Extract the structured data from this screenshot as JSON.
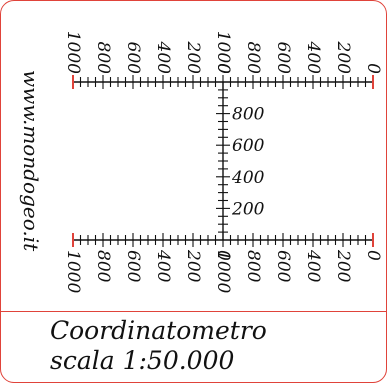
{
  "website": "www.mondogeo.it",
  "title": "Coordinatometro",
  "scale": "scala 1:50.000",
  "colors": {
    "border": "#e0433a",
    "ink": "#111111"
  },
  "rulers": {
    "horizontal_labels": [
      "0",
      "200",
      "400",
      "600",
      "800",
      "1000"
    ],
    "vertical_labels": [
      "200",
      "400",
      "600",
      "800"
    ]
  }
}
